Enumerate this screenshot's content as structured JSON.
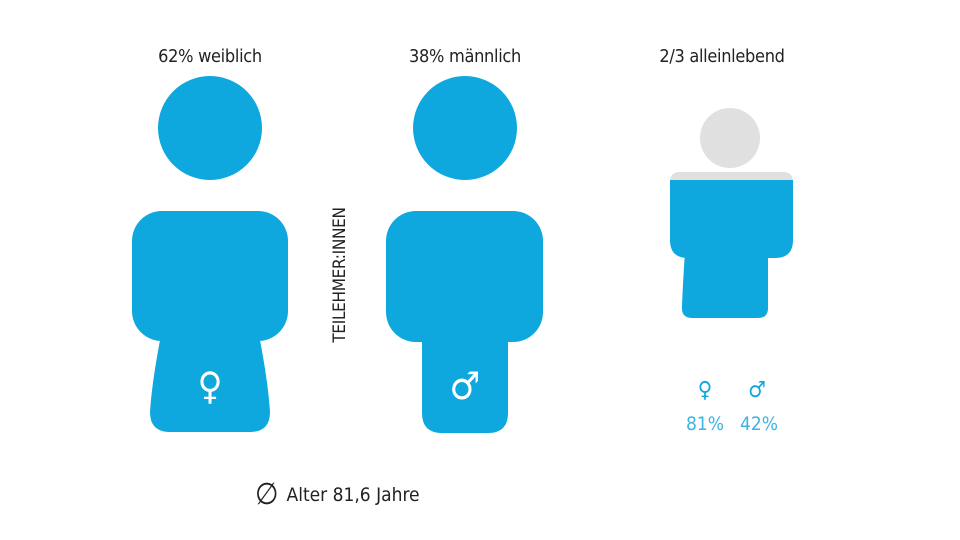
{
  "colors": {
    "figure": "#0ea8de",
    "inactive": "#e0e0e0",
    "percent_text": "#3bb3e6"
  },
  "female": {
    "label": "62% weiblich",
    "symbol": "♀",
    "share_percent": 62
  },
  "male": {
    "label": "38% männlich",
    "symbol": "♂",
    "share_percent": 38
  },
  "vertical_label": "TEILEHMER:INNEN",
  "living_alone": {
    "label": "2/3 alleinlebend",
    "fraction": 0.667,
    "female": {
      "symbol": "♀",
      "value": "81%"
    },
    "male": {
      "symbol": "♂",
      "value": "42%"
    }
  },
  "age": {
    "symbol": "∅",
    "text": "Alter 81,6 Jahre"
  }
}
